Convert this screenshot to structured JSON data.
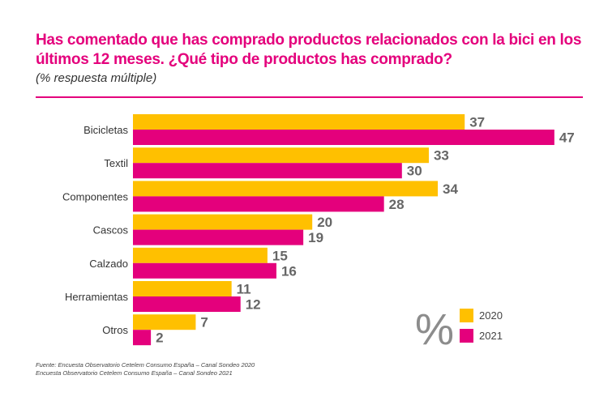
{
  "header": {
    "title": "Has comentado que has comprado productos relacionados con la bici en los últimos 12 meses. ¿Qué tipo de productos has comprado?",
    "subtitle": "(% respuesta múltiple)"
  },
  "colors": {
    "accent": "#e4007c",
    "series_2020": "#ffc000",
    "series_2021": "#e4007c"
  },
  "chart_data": {
    "type": "bar",
    "orientation": "horizontal",
    "title": "Has comentado que has comprado productos relacionados con la bici en los últimos 12 meses. ¿Qué tipo de productos has comprado?",
    "subtitle": "(% respuesta múltiple)",
    "categories": [
      "Bicicletas",
      "Textil",
      "Componentes",
      "Cascos",
      "Calzado",
      "Herramientas",
      "Otros"
    ],
    "series": [
      {
        "name": "2020",
        "values": [
          37,
          33,
          34,
          20,
          15,
          11,
          7
        ]
      },
      {
        "name": "2021",
        "values": [
          47,
          30,
          28,
          19,
          16,
          12,
          2
        ]
      }
    ],
    "unit_symbol": "%",
    "xlim": [
      0,
      50
    ],
    "grid": false,
    "legend": "bottom-right"
  },
  "footer": {
    "source_line1": "Fuente: Encuesta Observatorio Cetelem Consumo España – Canal Sondeo 2020",
    "source_line2": "Encuesta Observatorio Cetelem Consumo España – Canal Sondeo 2021"
  }
}
